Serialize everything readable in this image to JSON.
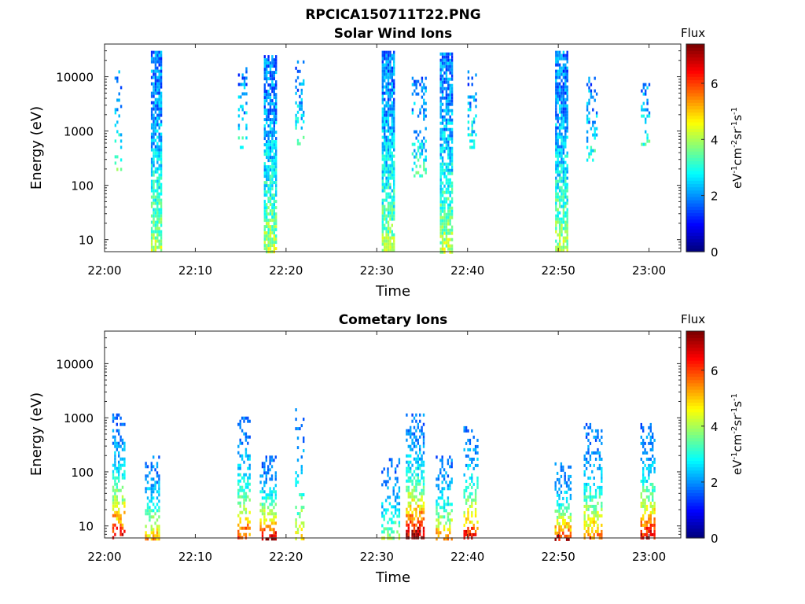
{
  "figure": {
    "title": "RPCICA150711T22.PNG"
  },
  "chart_data": [
    {
      "type": "heatmap",
      "title": "Solar Wind Ions",
      "xlabel": "Time",
      "ylabel": "Energy (eV)",
      "x_ticks": [
        "22:00",
        "22:10",
        "22:20",
        "22:30",
        "22:40",
        "22:50",
        "23:00"
      ],
      "x_tick_minutes": [
        0,
        10,
        20,
        30,
        40,
        50,
        60
      ],
      "xlim_minutes": [
        0,
        63.5
      ],
      "y_scale": "log",
      "ylim": [
        6,
        40000
      ],
      "y_ticks": [
        "10",
        "100",
        "1000",
        "10000"
      ],
      "y_tick_values": [
        10,
        100,
        1000,
        10000
      ],
      "colorbar": {
        "label": "Flux",
        "unit": "eV-1cm-2sr-1s-1",
        "ticks": [
          "0",
          "2",
          "4",
          "6"
        ],
        "range": [
          0,
          7.4
        ],
        "colormap": "jet"
      },
      "bursts": [
        {
          "t": 1.5,
          "width_min": 0.8,
          "e_min": 200,
          "e_max": 15000,
          "peak_flux": 2.6,
          "density": 0.25
        },
        {
          "t": 5.7,
          "width_min": 1.2,
          "e_min": 6,
          "e_max": 30000,
          "peak_flux": 3.8,
          "density": 0.8
        },
        {
          "t": 15.2,
          "width_min": 1.0,
          "e_min": 500,
          "e_max": 15000,
          "peak_flux": 2.0,
          "density": 0.3
        },
        {
          "t": 18.2,
          "width_min": 1.3,
          "e_min": 6,
          "e_max": 25000,
          "peak_flux": 3.9,
          "density": 0.8
        },
        {
          "t": 21.5,
          "width_min": 1.0,
          "e_min": 600,
          "e_max": 20000,
          "peak_flux": 2.4,
          "density": 0.35
        },
        {
          "t": 31.2,
          "width_min": 1.3,
          "e_min": 6,
          "e_max": 30000,
          "peak_flux": 3.6,
          "density": 0.85
        },
        {
          "t": 34.6,
          "width_min": 1.5,
          "e_min": 150,
          "e_max": 10000,
          "peak_flux": 2.3,
          "density": 0.3
        },
        {
          "t": 37.6,
          "width_min": 1.3,
          "e_min": 6,
          "e_max": 28000,
          "peak_flux": 3.9,
          "density": 0.8
        },
        {
          "t": 40.5,
          "width_min": 1.0,
          "e_min": 500,
          "e_max": 15000,
          "peak_flux": 2.4,
          "density": 0.3
        },
        {
          "t": 50.3,
          "width_min": 1.3,
          "e_min": 6,
          "e_max": 30000,
          "peak_flux": 3.8,
          "density": 0.8
        },
        {
          "t": 53.7,
          "width_min": 1.2,
          "e_min": 300,
          "e_max": 10000,
          "peak_flux": 2.2,
          "density": 0.3
        },
        {
          "t": 59.6,
          "width_min": 1.0,
          "e_min": 600,
          "e_max": 10000,
          "peak_flux": 2.4,
          "density": 0.3
        }
      ]
    },
    {
      "type": "heatmap",
      "title": "Cometary Ions",
      "xlabel": "Time",
      "ylabel": "Energy (eV)",
      "x_ticks": [
        "22:00",
        "22:10",
        "22:20",
        "22:30",
        "22:40",
        "22:50",
        "23:00"
      ],
      "x_tick_minutes": [
        0,
        10,
        20,
        30,
        40,
        50,
        60
      ],
      "xlim_minutes": [
        0,
        63.5
      ],
      "y_scale": "log",
      "ylim": [
        6,
        40000
      ],
      "y_ticks": [
        "10",
        "100",
        "1000",
        "10000"
      ],
      "y_tick_values": [
        10,
        100,
        1000,
        10000
      ],
      "colorbar": {
        "label": "Flux",
        "unit": "eV-1cm-2sr-1s-1",
        "ticks": [
          "0",
          "2",
          "4",
          "6"
        ],
        "range": [
          0,
          7.4
        ],
        "colormap": "jet"
      },
      "bursts": [
        {
          "t": 1.5,
          "width_min": 1.3,
          "e_min": 6,
          "e_max": 1200,
          "peak_flux": 6.0,
          "density": 0.6
        },
        {
          "t": 5.2,
          "width_min": 1.5,
          "e_min": 6,
          "e_max": 200,
          "peak_flux": 4.0,
          "density": 0.6
        },
        {
          "t": 15.3,
          "width_min": 1.3,
          "e_min": 6,
          "e_max": 1200,
          "peak_flux": 5.0,
          "density": 0.5
        },
        {
          "t": 18.0,
          "width_min": 1.8,
          "e_min": 6,
          "e_max": 200,
          "peak_flux": 6.2,
          "density": 0.6
        },
        {
          "t": 21.5,
          "width_min": 1.0,
          "e_min": 6,
          "e_max": 1500,
          "peak_flux": 3.5,
          "density": 0.4
        },
        {
          "t": 31.5,
          "width_min": 2.0,
          "e_min": 6,
          "e_max": 180,
          "peak_flux": 2.5,
          "density": 0.5
        },
        {
          "t": 34.2,
          "width_min": 2.0,
          "e_min": 6,
          "e_max": 1200,
          "peak_flux": 6.5,
          "density": 0.7
        },
        {
          "t": 37.4,
          "width_min": 1.8,
          "e_min": 6,
          "e_max": 200,
          "peak_flux": 4.5,
          "density": 0.6
        },
        {
          "t": 40.3,
          "width_min": 1.5,
          "e_min": 6,
          "e_max": 800,
          "peak_flux": 5.5,
          "density": 0.5
        },
        {
          "t": 50.5,
          "width_min": 1.8,
          "e_min": 6,
          "e_max": 150,
          "peak_flux": 5.5,
          "density": 0.6
        },
        {
          "t": 53.8,
          "width_min": 2.0,
          "e_min": 6,
          "e_max": 800,
          "peak_flux": 4.5,
          "density": 0.6
        },
        {
          "t": 59.8,
          "width_min": 1.5,
          "e_min": 6,
          "e_max": 800,
          "peak_flux": 6.0,
          "density": 0.6
        }
      ]
    }
  ]
}
